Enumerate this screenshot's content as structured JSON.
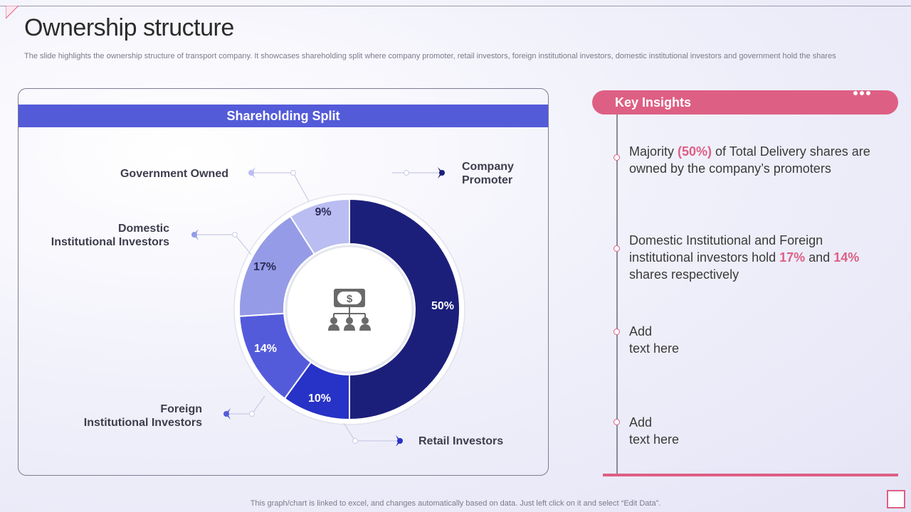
{
  "slide": {
    "title": "Ownership structure",
    "subtitle": "The slide highlights the ownership structure of transport company. It showcases shareholding split where company promoter, retail investors, foreign institutional investors, domestic institutional investors and government hold the shares",
    "footer": "This graph/chart is linked to excel,  and changes automatically based on data. Just left click on it and select “Edit Data”."
  },
  "panel": {
    "header": "Shareholding Split",
    "center_icon": "money-network-people-icon"
  },
  "chart_data": {
    "type": "pie",
    "title": "Shareholding Split",
    "slices": [
      {
        "label": "Company Promoter",
        "label_lines": [
          "Company",
          "Promoter"
        ],
        "value": 50,
        "text": "50%",
        "color": "#1c1f7a"
      },
      {
        "label": "Retail Investors",
        "label_lines": [
          "Retail Investors"
        ],
        "value": 10,
        "text": "10%",
        "color": "#2732c7"
      },
      {
        "label": "Foreign Institutional Investors",
        "label_lines": [
          "Foreign",
          "Institutional Investors"
        ],
        "value": 14,
        "text": "14%",
        "color": "#545bdb"
      },
      {
        "label": "Domestic Institutional Investors",
        "label_lines": [
          "Domestic",
          "Institutional Investors"
        ],
        "value": 17,
        "text": "17%",
        "color": "#959be6"
      },
      {
        "label": "Government Owned",
        "label_lines": [
          "Government Owned"
        ],
        "value": 9,
        "text": "9%",
        "color": "#babdf1"
      }
    ]
  },
  "insights": {
    "header": "Key Insights",
    "items": [
      {
        "parts": [
          "Majority ",
          "(50%)",
          " of Total Delivery shares are owned by the company’s promoters"
        ]
      },
      {
        "parts": [
          "Domestic Institutional and Foreign institutional investors hold ",
          "17%",
          " and ",
          "14%",
          " shares respectively"
        ]
      },
      {
        "parts": [
          "Add",
          "text here"
        ]
      },
      {
        "parts": [
          "Add",
          "text here"
        ]
      }
    ]
  },
  "colors": {
    "accent_pink": "#de5f84",
    "header_blue": "#545bd9"
  }
}
